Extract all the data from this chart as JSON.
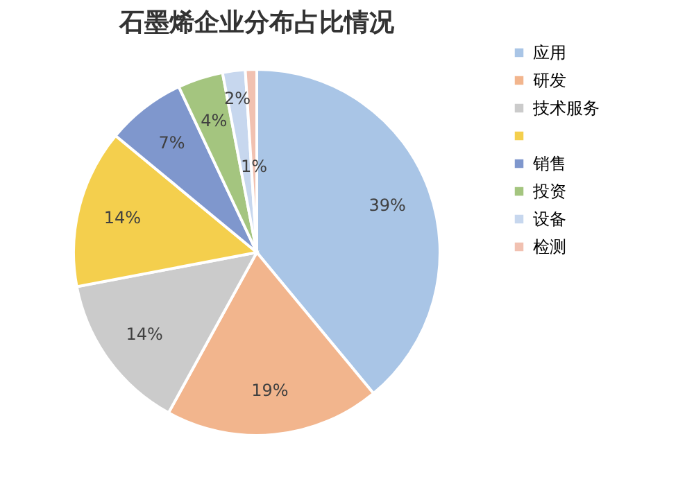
{
  "chart_data": {
    "type": "pie",
    "title": "石墨烯企业分布占比情况",
    "categories": [
      "应用",
      "研发",
      "技术服务",
      null,
      "销售",
      "投资",
      "设备",
      "检测"
    ],
    "values": [
      39,
      19,
      14,
      14,
      7,
      4,
      2,
      1
    ],
    "value_labels": [
      "39%",
      "19%",
      "14%",
      "14%",
      "7%",
      "4%",
      "2%",
      "1%"
    ],
    "colors": [
      "#a9c5e6",
      "#f2b58d",
      "#cbcbcb",
      "#f4cf4d",
      "#7f97cd",
      "#a4c57f",
      "#c7d7ee",
      "#f1c1b1"
    ],
    "legend": "right"
  }
}
